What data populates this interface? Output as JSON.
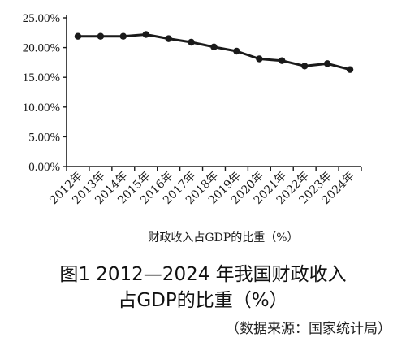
{
  "chart_data": {
    "type": "line",
    "categories": [
      "2012年",
      "2013年",
      "2014年",
      "2015年",
      "2016年",
      "2017年",
      "2018年",
      "2019年",
      "2020年",
      "2021年",
      "2022年",
      "2023年",
      "2024年"
    ],
    "series": [
      {
        "values": [
          21.9,
          21.9,
          21.9,
          22.2,
          21.5,
          20.9,
          20.1,
          19.4,
          18.1,
          17.8,
          16.9,
          17.3,
          16.3
        ]
      }
    ],
    "y_ticks": [
      "0.00%",
      "5.00%",
      "10.00%",
      "15.00%",
      "20.00%",
      "25.00%"
    ],
    "ylim": [
      0,
      25
    ],
    "xlabel": "财政收入占GDP的比重（%）",
    "ylabel": "",
    "grid": false,
    "line_color": "#1a1a1a",
    "marker": "filled-circle"
  },
  "caption": {
    "line1": "图1 2012—2024 年我国财政收入",
    "line2": "占GDP的比重（%）",
    "source": "（数据来源：国家统计局）"
  }
}
